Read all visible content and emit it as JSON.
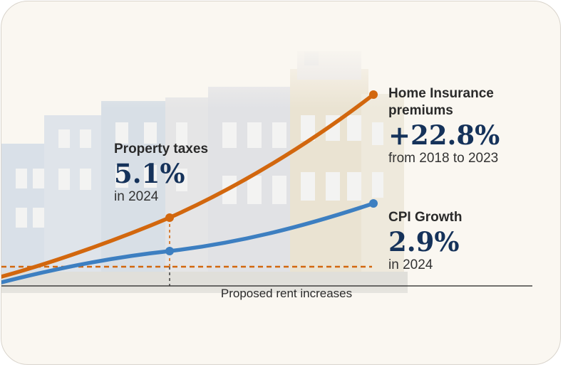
{
  "chart_data": {
    "type": "line",
    "series": [
      {
        "name": "Home Insurance premiums",
        "color": "#d2670e"
      },
      {
        "name": "CPI Growth",
        "color": "#3d7fc1"
      }
    ],
    "reference_line": {
      "label": "Proposed rent increases",
      "color": "#d2670e"
    },
    "annotations": {
      "property_taxes": {
        "title": "Property taxes",
        "value": "5.1%",
        "note": "in 2024"
      },
      "home_insurance": {
        "title_line1": "Home Insurance",
        "title_line2": "premiums",
        "value": "+22.8%",
        "note": "from 2018 to 2023"
      },
      "cpi": {
        "title": "CPI Growth",
        "value": "2.9%",
        "note": "in 2024"
      }
    },
    "axis_caption": "Proposed rent increases"
  }
}
